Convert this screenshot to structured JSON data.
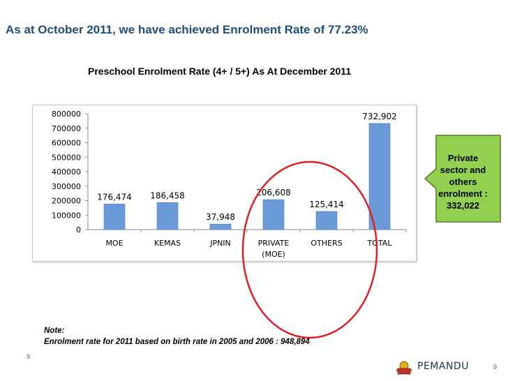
{
  "slide": {
    "title": "As at October 2011, we have achieved Enrolment Rate of 77.23%",
    "note_heading": "Note:",
    "note_text": "Enrolment rate for 2011 based on birth rate in 2005 and 2006   : 948,894",
    "page_left": "9",
    "page_right": "9"
  },
  "callout": {
    "text": "Private\nsector and\nothers\nenrolment :\n332,022",
    "fill": "#92d050",
    "stroke": "#4f7a1f"
  },
  "logo": {
    "text": "PEMANDU"
  },
  "colors": {
    "bar": "#6a9ad8",
    "bar_edge": "#4a7ab8",
    "highlight_circle": "#e02020"
  },
  "chart_data": {
    "type": "bar",
    "title": "Preschool Enrolment Rate (4+ / 5+) As At December 2011",
    "categories": [
      "MOE",
      "KEMAS",
      "JPNIN",
      "PRIVATE (MOE)",
      "OTHERS",
      "TOTAL"
    ],
    "values": [
      176474,
      186458,
      37948,
      206608,
      125414,
      732902
    ],
    "data_labels": [
      "176,474",
      "186,458",
      "37,948",
      "206,608",
      "125,414",
      "732,902"
    ],
    "ylim": [
      0,
      800000
    ],
    "yticks": [
      0,
      100000,
      200000,
      300000,
      400000,
      500000,
      600000,
      700000,
      800000
    ],
    "xlabel": "",
    "ylabel": "",
    "grid": false,
    "legend": "none"
  }
}
